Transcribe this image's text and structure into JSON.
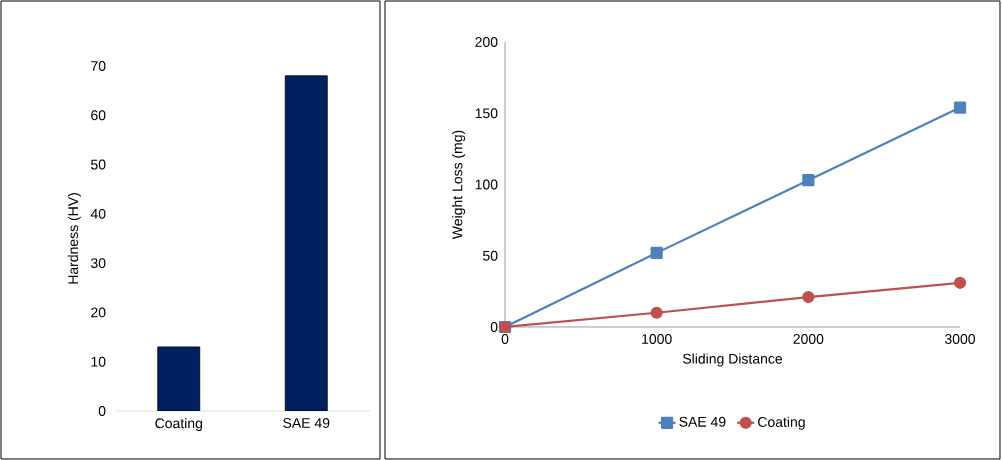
{
  "chart_data": [
    {
      "type": "bar",
      "ylabel": "Hardness (HV)",
      "categories": [
        "Coating",
        "SAE 49"
      ],
      "values": [
        13,
        68
      ],
      "color": "#002060",
      "ylim": [
        0,
        70
      ],
      "yticks": [
        0,
        10,
        20,
        30,
        40,
        50,
        60,
        70
      ],
      "grid": false
    },
    {
      "type": "line",
      "xlabel": "Sliding Distance",
      "ylabel": "Weight Loss (mg)",
      "x": [
        0,
        1000,
        2000,
        3000
      ],
      "xlim": [
        0,
        3000
      ],
      "xticks": [
        0,
        1000,
        2000,
        3000
      ],
      "ylim": [
        0,
        200
      ],
      "yticks": [
        0,
        50,
        100,
        150,
        200
      ],
      "grid": false,
      "legend": "bottom",
      "series": [
        {
          "name": "SAE 49",
          "color": "#4f81bd",
          "marker": "square",
          "values": [
            0,
            52,
            103,
            154
          ]
        },
        {
          "name": "Coating",
          "color": "#c0504d",
          "marker": "circle",
          "values": [
            0,
            10,
            21,
            31
          ]
        }
      ]
    }
  ]
}
